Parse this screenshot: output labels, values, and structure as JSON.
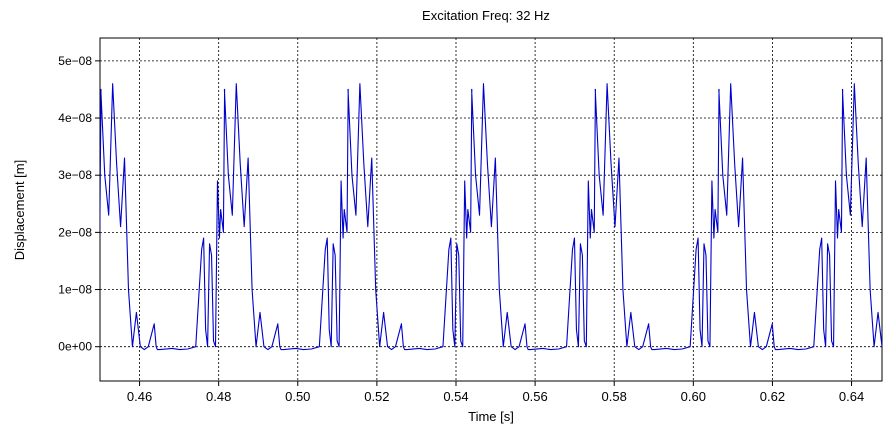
{
  "chart_data": {
    "type": "line",
    "title": "Excitation Freq: 32 Hz",
    "xlabel": "Time [s]",
    "ylabel": "Displacement [m]",
    "xlim": [
      0.45,
      0.6477
    ],
    "ylim": [
      -6e-09,
      5.4e-08
    ],
    "x_ticks": [
      0.46,
      0.48,
      0.5,
      0.52,
      0.54,
      0.56,
      0.58,
      0.6,
      0.62,
      0.64
    ],
    "x_tick_labels": [
      "0.46",
      "0.48",
      "0.50",
      "0.52",
      "0.54",
      "0.56",
      "0.58",
      "0.60",
      "0.62",
      "0.64"
    ],
    "y_ticks": [
      0,
      1e-08,
      2e-08,
      3e-08,
      4e-08,
      5e-08
    ],
    "y_tick_labels": [
      "0e+00",
      "1e−08",
      "2e−08",
      "3e−08",
      "4e−08",
      "5e−08"
    ],
    "grid": true,
    "grid_style": "dotted",
    "line_color": "#0000cc",
    "series": [
      {
        "period": 0.03125,
        "phase_start": 0.4502,
        "x": [
          0.0,
          0.001,
          0.002,
          0.003,
          0.004,
          0.005,
          0.006,
          0.007,
          0.008,
          0.009,
          0.01,
          0.011,
          0.012,
          0.0135,
          0.014,
          0.0143,
          0.015,
          0.018,
          0.02,
          0.022,
          0.024,
          0.0255,
          0.026,
          0.0265,
          0.027,
          0.0275,
          0.028,
          0.0285,
          0.029,
          0.0295,
          0.03,
          0.0303,
          0.031,
          0.0313
        ],
        "y": [
          4.5e-08,
          3e-08,
          2.3e-08,
          4.6e-08,
          3.2e-08,
          2.1e-08,
          3.3e-08,
          1e-08,
          0.0,
          6e-09,
          0.0,
          -5e-10,
          0.0,
          4e-09,
          0.0,
          -5e-10,
          -5e-10,
          -3e-10,
          -5e-10,
          -4e-10,
          0.0,
          1.7e-08,
          1.9e-08,
          3e-09,
          0.0,
          1.8e-08,
          1.6e-08,
          1e-09,
          0.0,
          2.9e-08,
          1.9e-08,
          2.4e-08,
          2e-08,
          4.5e-08
        ]
      }
    ]
  }
}
